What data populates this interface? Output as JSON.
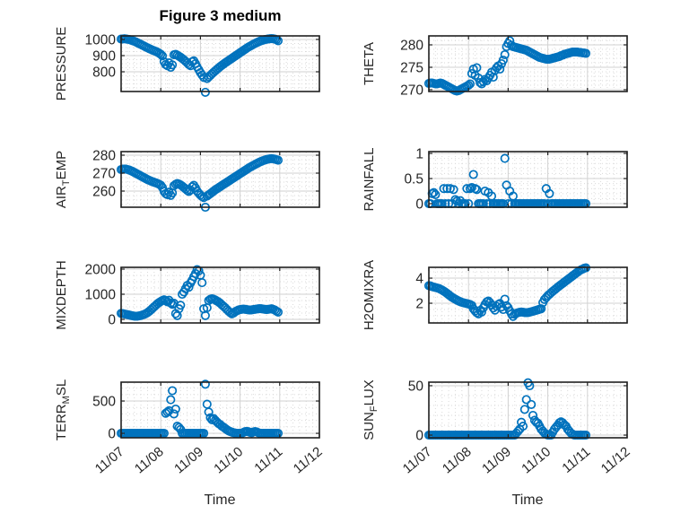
{
  "colors": {
    "marker": "#0072BD",
    "grid_major": "#d2d2d2",
    "grid_minor": "#dadada",
    "axis": "#202020",
    "text": "#262626",
    "title": "#000000",
    "background": "#ffffff"
  },
  "chart_data": {
    "type": "scatter",
    "title": "Figure 3 medium",
    "xlabel": "Time",
    "marker": "open-circle",
    "grid": "major-solid-minor-dotted",
    "legend": "none",
    "xlim_days": [
      0,
      5
    ],
    "x_tick_labels": [
      "11/07",
      "11/08",
      "11/09",
      "11/10",
      "11/11",
      "11/12"
    ],
    "x_start": 0,
    "x_step": 0.0416667,
    "n_points": 96,
    "subplots": [
      {
        "name": "PRESSURE",
        "label_segments": [
          {
            "t": "PRESSURE"
          }
        ],
        "yticks": [
          800,
          900,
          1000
        ],
        "ylim": [
          678,
          1022
        ],
        "yminor": 25,
        "values": [
          1002,
          1003,
          1004,
          1003,
          1001,
          999,
          996,
          992,
          988,
          984,
          979,
          974,
          969,
          964,
          959,
          953,
          948,
          943,
          938,
          934,
          930,
          926,
          921,
          915,
          908,
          898,
          862,
          845,
          838,
          855,
          828,
          843,
          905,
          908,
          902,
          896,
          890,
          882,
          874,
          865,
          855,
          845,
          838,
          862,
          868,
          850,
          830,
          812,
          795,
          780,
          765,
          673,
          758,
          768,
          778,
          788,
          797,
          806,
          815,
          824,
          832,
          840,
          848,
          855,
          862,
          869,
          876,
          883,
          890,
          897,
          904,
          911,
          918,
          925,
          932,
          939,
          946,
          952,
          958,
          964,
          970,
          975,
          980,
          985,
          989,
          993,
          996,
          999,
          1001,
          1003,
          1004,
          1005,
          1004,
          1002,
          998,
          992
        ]
      },
      {
        "name": "THETA",
        "label_segments": [
          {
            "t": "THETA"
          }
        ],
        "yticks": [
          270,
          275,
          280
        ],
        "ylim": [
          269.6,
          282
        ],
        "yminor": 1,
        "values": [
          271.4,
          271.5,
          271.5,
          271.4,
          271.3,
          271.3,
          271.4,
          271.5,
          271.4,
          271.2,
          271.0,
          270.8,
          270.6,
          270.4,
          270.2,
          270.0,
          269.8,
          269.7,
          269.8,
          270.0,
          270.2,
          270.4,
          270.6,
          270.8,
          271.0,
          271.3,
          273.6,
          274.6,
          273.2,
          274.9,
          272.6,
          271.6,
          271.3,
          271.8,
          272.3,
          272.0,
          272.6,
          273.2,
          273.9,
          272.8,
          274.3,
          274.9,
          275.3,
          274.6,
          275.8,
          276.6,
          277.8,
          279.6,
          280.3,
          280.9,
          279.9,
          279.6,
          279.5,
          279.4,
          279.3,
          279.2,
          279.1,
          279.0,
          278.9,
          278.8,
          278.6,
          278.4,
          278.2,
          278.0,
          277.8,
          277.6,
          277.4,
          277.2,
          277.1,
          277.0,
          276.9,
          276.8,
          276.8,
          276.8,
          276.9,
          277.0,
          277.1,
          277.2,
          277.3,
          277.4,
          277.6,
          277.7,
          277.9,
          278.0,
          278.1,
          278.2,
          278.3,
          278.4,
          278.4,
          278.4,
          278.4,
          278.3,
          278.3,
          278.2,
          278.2,
          278.1
        ]
      },
      {
        "name": "AIR_TEMP",
        "label_segments": [
          {
            "t": "AIR"
          },
          {
            "t": "T",
            "sub": true
          },
          {
            "t": "EMP"
          }
        ],
        "yticks": [
          260,
          270,
          280
        ],
        "ylim": [
          251,
          282
        ],
        "yminor": 2.5,
        "values": [
          272.0,
          272.2,
          272.3,
          272.2,
          272.0,
          271.7,
          271.3,
          270.9,
          270.4,
          269.9,
          269.4,
          268.9,
          268.4,
          267.9,
          267.4,
          266.9,
          266.4,
          266.0,
          265.6,
          265.2,
          264.9,
          264.6,
          264.2,
          263.8,
          263.3,
          262.0,
          259.8,
          258.6,
          258.0,
          259.4,
          257.6,
          259.0,
          263.0,
          263.8,
          264.2,
          263.9,
          263.4,
          262.8,
          262.0,
          261.2,
          260.4,
          259.8,
          260.6,
          262.4,
          263.2,
          261.8,
          260.0,
          258.8,
          257.8,
          257.0,
          256.4,
          251.0,
          257.2,
          257.9,
          258.6,
          259.3,
          260.0,
          260.7,
          261.3,
          261.9,
          262.5,
          263.1,
          263.7,
          264.3,
          264.9,
          265.5,
          266.1,
          266.7,
          267.3,
          267.9,
          268.5,
          269.1,
          269.7,
          270.3,
          270.9,
          271.5,
          272.1,
          272.7,
          273.3,
          273.8,
          274.3,
          274.8,
          275.3,
          275.8,
          276.2,
          276.6,
          277.0,
          277.3,
          277.6,
          277.8,
          278.0,
          278.1,
          278.0,
          277.8,
          277.5,
          277.2
        ]
      },
      {
        "name": "RAINFALL",
        "label_segments": [
          {
            "t": "RAINFALL"
          }
        ],
        "yticks": [
          0,
          0.5,
          1
        ],
        "ylim": [
          -0.071,
          1.036
        ],
        "yminor": 0.1,
        "values": [
          0,
          0,
          0.2,
          0.22,
          0.18,
          0,
          0,
          0,
          0,
          0.3,
          0,
          0.3,
          0,
          0.3,
          0,
          0.28,
          0.08,
          0.05,
          0,
          0.06,
          0,
          0,
          0,
          0.3,
          0,
          0.3,
          0.32,
          0.58,
          0.3,
          0.28,
          0,
          0,
          0,
          0,
          0.25,
          0,
          0.22,
          0,
          0.15,
          0,
          0,
          0,
          0,
          0,
          0,
          0,
          0.9,
          0.37,
          0,
          0.25,
          0,
          0.15,
          0,
          0,
          0,
          0,
          0,
          0,
          0,
          0,
          0,
          0,
          0,
          0,
          0,
          0,
          0,
          0,
          0,
          0,
          0,
          0.3,
          0,
          0.2,
          0,
          0,
          0,
          0,
          0,
          0,
          0,
          0,
          0,
          0,
          0,
          0,
          0,
          0,
          0,
          0,
          0,
          0,
          0,
          0,
          0,
          0
        ]
      },
      {
        "name": "MIXDEPTH",
        "label_segments": [
          {
            "t": "MIXDEPTH"
          }
        ],
        "yticks": [
          0,
          1000,
          2000
        ],
        "ylim": [
          -143,
          2071
        ],
        "yminor": 250,
        "values": [
          240,
          230,
          215,
          200,
          185,
          170,
          155,
          140,
          130,
          125,
          130,
          140,
          155,
          175,
          200,
          230,
          270,
          320,
          380,
          440,
          500,
          560,
          620,
          670,
          710,
          750,
          780,
          745,
          700,
          760,
          650,
          600,
          640,
          230,
          150,
          420,
          560,
          1000,
          1090,
          1220,
          1350,
          1280,
          1450,
          1560,
          1700,
          1820,
          1980,
          1930,
          1760,
          1460,
          420,
          150,
          460,
          750,
          800,
          820,
          800,
          770,
          730,
          690,
          640,
          580,
          520,
          460,
          390,
          330,
          270,
          220,
          250,
          300,
          340,
          370,
          390,
          400,
          410,
          400,
          390,
          380,
          370,
          380,
          390,
          400,
          410,
          420,
          430,
          420,
          410,
          400,
          390,
          400,
          410,
          420,
          400,
          370,
          330,
          290
        ]
      },
      {
        "name": "H2OMIXRA",
        "label_segments": [
          {
            "t": "H2OMIXRA"
          }
        ],
        "yticks": [
          2,
          4
        ],
        "ylim": [
          0.43,
          4.86
        ],
        "yminor": 0.5,
        "values": [
          3.4,
          3.38,
          3.32,
          3.28,
          3.25,
          3.22,
          3.18,
          3.12,
          3.05,
          2.97,
          2.88,
          2.78,
          2.68,
          2.58,
          2.48,
          2.4,
          2.32,
          2.25,
          2.18,
          2.12,
          2.07,
          2.03,
          2.0,
          1.97,
          1.94,
          1.9,
          1.82,
          1.55,
          1.38,
          1.25,
          1.15,
          1.42,
          1.3,
          1.65,
          1.9,
          2.1,
          2.18,
          2.05,
          1.85,
          1.62,
          1.45,
          1.75,
          1.9,
          1.98,
          1.7,
          1.5,
          2.32,
          1.8,
          1.65,
          1.4,
          1.15,
          0.95,
          1.12,
          1.2,
          1.25,
          1.28,
          1.3,
          1.28,
          1.26,
          1.25,
          1.26,
          1.28,
          1.32,
          1.36,
          1.4,
          1.44,
          1.48,
          1.52,
          1.56,
          2.05,
          2.3,
          2.45,
          2.6,
          2.72,
          2.84,
          2.95,
          3.06,
          3.17,
          3.28,
          3.38,
          3.48,
          3.58,
          3.68,
          3.78,
          3.88,
          3.98,
          4.08,
          4.18,
          4.28,
          4.38,
          4.48,
          4.58,
          4.66,
          4.72,
          4.78,
          4.82
        ]
      },
      {
        "name": "TERR_MSL",
        "label_segments": [
          {
            "t": "TERR"
          },
          {
            "t": "M",
            "sub": true
          },
          {
            "t": "SL"
          }
        ],
        "yticks": [
          0,
          500
        ],
        "ylim": [
          -69,
          792
        ],
        "yminor": 100,
        "values": [
          0,
          0,
          0,
          0,
          0,
          0,
          0,
          0,
          0,
          0,
          0,
          0,
          0,
          0,
          0,
          0,
          0,
          0,
          0,
          0,
          0,
          0,
          0,
          0,
          0,
          0,
          0,
          310,
          330,
          350,
          520,
          660,
          300,
          375,
          110,
          90,
          60,
          0,
          0,
          0,
          0,
          0,
          0,
          0,
          0,
          0,
          0,
          0,
          0,
          0,
          0,
          760,
          450,
          330,
          240,
          210,
          230,
          200,
          175,
          150,
          135,
          110,
          95,
          75,
          55,
          40,
          28,
          18,
          10,
          5,
          0,
          0,
          0,
          0,
          15,
          25,
          30,
          25,
          15,
          8,
          20,
          28,
          22,
          10,
          0,
          0,
          0,
          0,
          0,
          0,
          0,
          0,
          0,
          0,
          0,
          0
        ]
      },
      {
        "name": "SUN_FLUX",
        "label_segments": [
          {
            "t": "SUN"
          },
          {
            "t": "F",
            "sub": true
          },
          {
            "t": "LUX"
          }
        ],
        "yticks": [
          0,
          50
        ],
        "ylim": [
          -2.7,
          53.6
        ],
        "yminor": 10,
        "values": [
          0,
          0,
          0,
          0,
          0,
          0,
          0,
          0,
          0,
          0,
          0,
          0,
          0,
          0,
          0,
          0,
          0,
          0,
          0,
          0,
          0,
          0,
          0,
          0,
          0,
          0,
          0,
          0,
          0,
          0,
          0,
          0,
          0,
          0,
          0,
          0,
          0,
          0,
          0,
          0,
          0,
          0,
          0,
          0,
          0,
          0,
          0,
          0,
          0,
          0,
          0,
          0,
          0,
          2,
          4,
          6,
          13,
          9,
          26,
          36,
          53,
          50,
          31,
          20,
          15,
          13,
          12,
          9,
          6,
          4,
          2,
          1,
          0,
          0,
          0,
          3,
          6,
          8,
          10,
          12.5,
          13.5,
          12.5,
          10.5,
          9,
          6,
          4,
          2,
          1,
          0,
          0,
          0,
          0,
          0,
          0,
          0,
          0
        ]
      }
    ]
  }
}
